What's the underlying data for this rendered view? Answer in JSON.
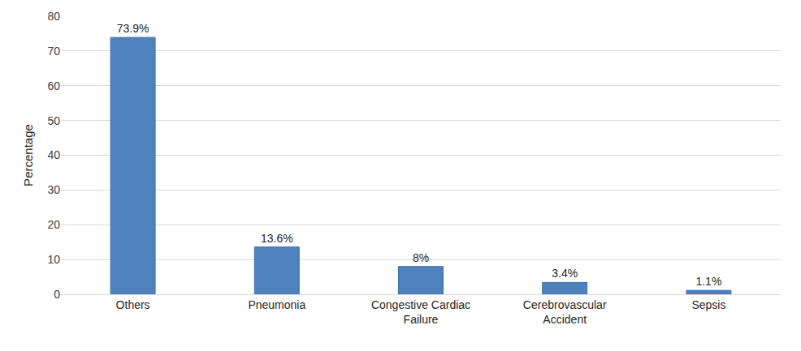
{
  "chart_data": {
    "type": "bar",
    "y_label": "Percentage",
    "categories": [
      "Others",
      "Pneumonia",
      "Congestive Cardiac Failure",
      "Cerebrovascular Accident",
      "Sepsis"
    ],
    "values": [
      73.9,
      13.6,
      8,
      3.4,
      1.1
    ],
    "value_labels": [
      "73.9%",
      "13.6%",
      "8%",
      "3.4%",
      "1.1%"
    ],
    "data_labels": true,
    "color": "#4f81bd",
    "ylim": [
      0,
      80
    ],
    "yticks": [
      0,
      10,
      20,
      30,
      40,
      50,
      60,
      70,
      80
    ],
    "grid": true
  }
}
